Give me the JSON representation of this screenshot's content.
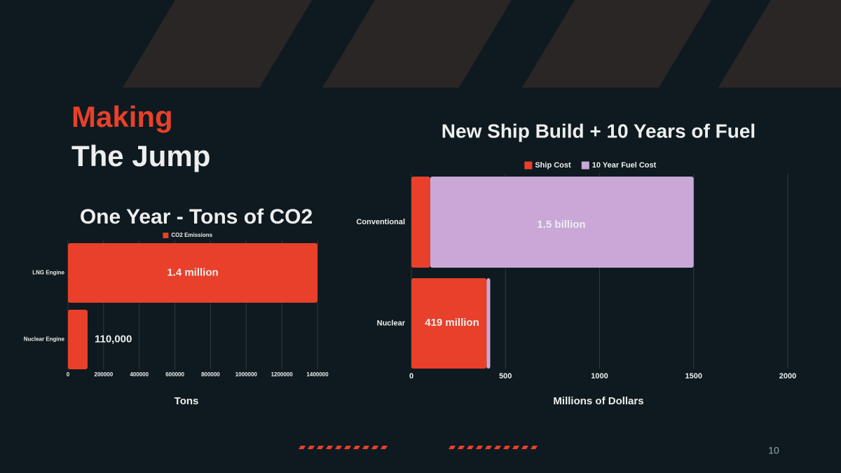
{
  "slide": {
    "title_line1": "Making",
    "title_line2": "The Jump",
    "page_number": "10"
  },
  "chart_data": [
    {
      "type": "hbar",
      "title": "One Year - Tons of CO2",
      "categories": [
        "LNG Engine",
        "Nuclear Engine"
      ],
      "series": [
        {
          "name": "CO2 Emissions",
          "color": "#e8402a",
          "values": [
            1400000,
            110000
          ],
          "value_labels": [
            "1.4 million",
            "110,000"
          ]
        }
      ],
      "xlim": [
        0,
        1400000
      ],
      "xticks": [
        0,
        200000,
        400000,
        600000,
        800000,
        1000000,
        1200000,
        1400000
      ],
      "xlabel": "Tons",
      "grid": true
    },
    {
      "type": "stacked_hbar",
      "title": "New Ship Build + 10 Years of Fuel",
      "categories": [
        "Conventional",
        "Nuclear"
      ],
      "series": [
        {
          "name": "Ship Cost",
          "color": "#e8402a",
          "values": [
            100,
            400
          ]
        },
        {
          "name": "10 Year Fuel Cost",
          "color": "#c9a8d8",
          "values": [
            1400,
            19
          ]
        }
      ],
      "annotations": [
        "1.5 billion",
        "419 million"
      ],
      "xlim": [
        0,
        2000
      ],
      "xticks": [
        0,
        500,
        1000,
        1500,
        2000
      ],
      "xlabel": "Millions of Dollars",
      "grid": true
    }
  ]
}
